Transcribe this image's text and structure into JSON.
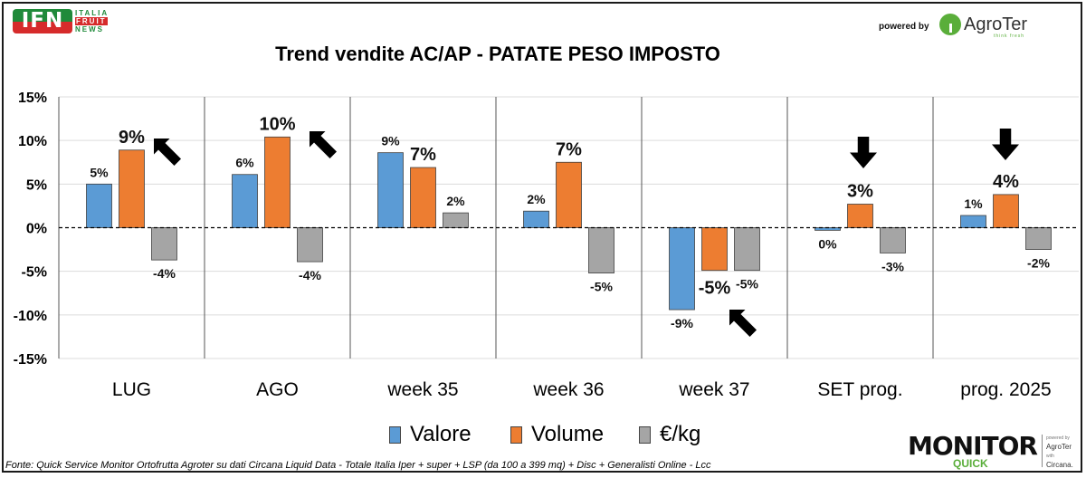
{
  "header": {
    "logo_left": {
      "mark": "IFN",
      "line1": "ITALIA",
      "line2": "FRUIT",
      "line3": "NEWS"
    },
    "powered_by": "powered by",
    "logo_right": {
      "name": "AgroTer",
      "tagline": "think fresh"
    }
  },
  "footer": {
    "source": "Fonte: Quick Service Monitor Ortofrutta Agroter su dati Circana Liquid Data - Totale Italia Iper + super + LSP (da 100 a 399 mq) + Disc + Generalisti Online - Lcc",
    "logo": {
      "main": "MONITOR",
      "sub": "QUICK",
      "powered": "powered by",
      "brand": "AgroTer",
      "with": "with",
      "partner": "Circana."
    }
  },
  "chart_data": {
    "type": "bar",
    "title": "Trend vendite AC/AP - PATATE PESO IMPOSTO",
    "xlabel": "",
    "ylabel": "",
    "ylim": [
      -15,
      15
    ],
    "yticks": [
      15,
      10,
      5,
      0,
      -5,
      -10,
      -15
    ],
    "ytick_labels": [
      "15%",
      "10%",
      "5%",
      "0%",
      "-5%",
      "-10%",
      "-15%"
    ],
    "grid": true,
    "zero_line": "dashed",
    "legend_position": "bottom-center",
    "categories": [
      "LUG",
      "AGO",
      "week 35",
      "week 36",
      "week 37",
      "SET prog.",
      "prog. 2025"
    ],
    "series": [
      {
        "name": "Valore",
        "color": "#5b9bd5",
        "values": [
          5.0,
          6.1,
          8.6,
          1.9,
          -9.4,
          -0.3,
          1.4
        ],
        "labels": [
          "5%",
          "6%",
          "9%",
          "2%",
          "-9%",
          "0%",
          "1%"
        ]
      },
      {
        "name": "Volume",
        "color": "#ed7d31",
        "values": [
          8.9,
          10.4,
          6.9,
          7.5,
          -4.9,
          2.7,
          3.8
        ],
        "labels": [
          "9%",
          "10%",
          "7%",
          "7%",
          "-5%",
          "3%",
          "4%"
        ]
      },
      {
        "name": "€/kg",
        "color": "#a5a5a5",
        "values": [
          -3.7,
          -3.9,
          1.7,
          -5.2,
          -4.9,
          -2.9,
          -2.5
        ],
        "labels": [
          "-4%",
          "-4%",
          "2%",
          "-5%",
          "-5%",
          "-3%",
          "-2%"
        ]
      }
    ],
    "annotations": [
      {
        "category": "LUG",
        "type": "arrow",
        "direction": "up-left"
      },
      {
        "category": "AGO",
        "type": "arrow",
        "direction": "up-left"
      },
      {
        "category": "week 37",
        "type": "arrow",
        "direction": "up-left"
      },
      {
        "category": "SET prog.",
        "type": "arrow",
        "direction": "down"
      },
      {
        "category": "prog. 2025",
        "type": "arrow",
        "direction": "down"
      }
    ]
  }
}
